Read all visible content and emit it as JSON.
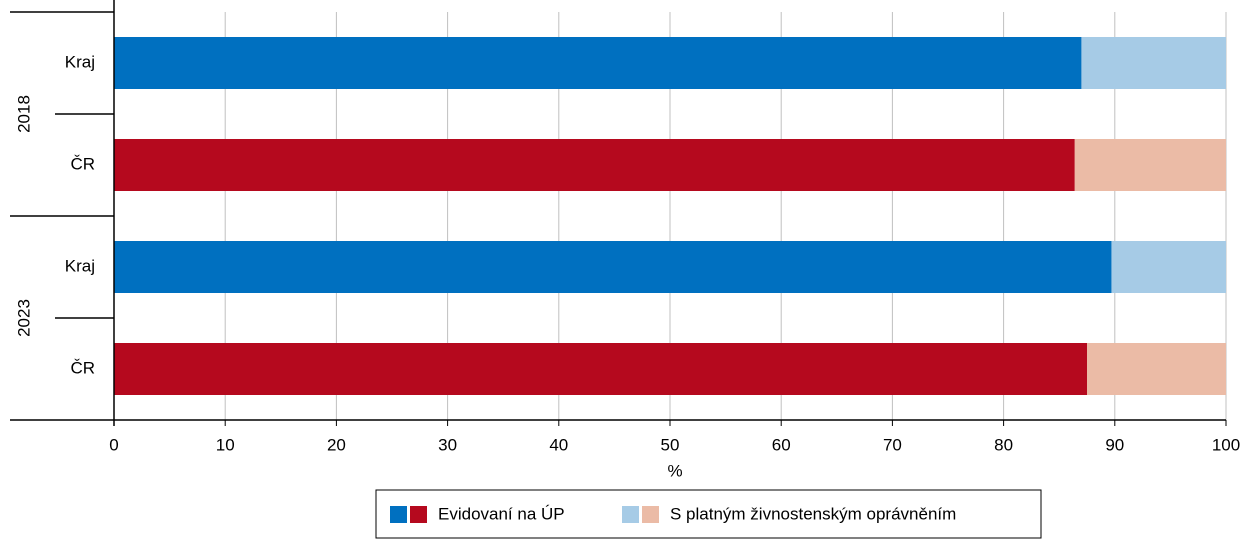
{
  "chart_data": {
    "type": "stacked_barh",
    "groups": [
      "2018",
      "2023"
    ],
    "categories": [
      "Kraj",
      "ČR",
      "Kraj",
      "ČR"
    ],
    "series": [
      {
        "name": "Evidovaní na ÚP",
        "colors": [
          "#0070c0",
          "#b5091e",
          "#0070c0",
          "#b5091e"
        ],
        "values": [
          87,
          86.4,
          89.7,
          87.5
        ]
      },
      {
        "name": "S platným živnostenským oprávněním",
        "colors": [
          "#a6cbe6",
          "#ebbba6",
          "#a6cbe6",
          "#ebbba6"
        ],
        "values": [
          13,
          13.6,
          10.3,
          12.5
        ]
      }
    ],
    "xlabel": "%",
    "xlim": [
      0,
      100
    ],
    "xticks": [
      0,
      10,
      20,
      30,
      40,
      50,
      60,
      70,
      80,
      90,
      100
    ],
    "grid": true
  }
}
